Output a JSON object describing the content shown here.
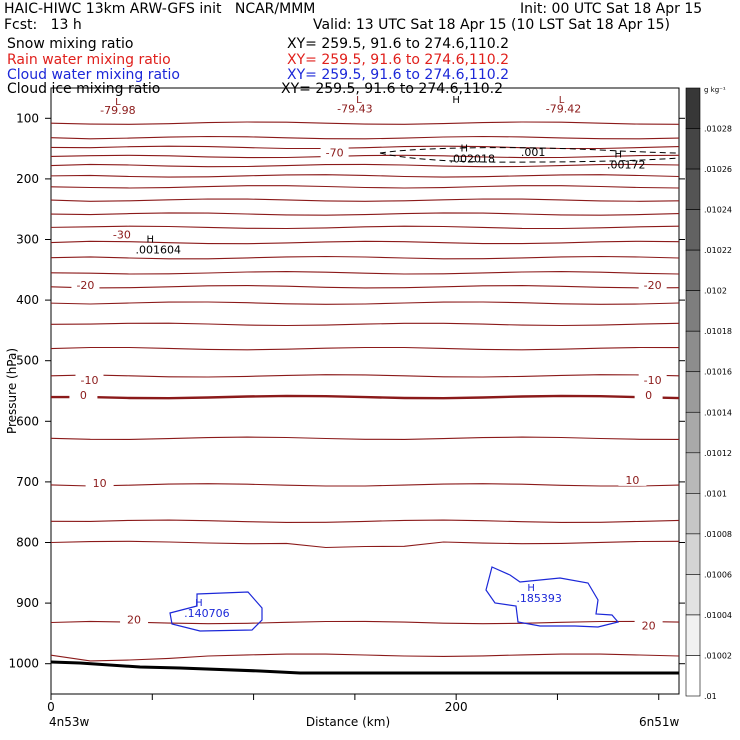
{
  "header": {
    "title_left": "HAIC-HIWC 13km ARW-GFS init   NCAR/MMM",
    "init": "Init: 00 UTC Sat 18 Apr 15",
    "fcst": "Fcst:   13 h",
    "valid": "Valid: 13 UTC Sat 18 Apr 15 (10 LST Sat 18 Apr 15)",
    "fields": [
      {
        "label": "Snow mixing ratio",
        "xy": "XY= 259.5, 91.6 to 274.6,110.2",
        "color": "#000000"
      },
      {
        "label": "Rain water mixing ratio",
        "xy": "XY= 259.5, 91.6 to 274.6,110.2",
        "color": "#e0201c"
      },
      {
        "label": "Cloud water mixing ratio",
        "xy": "XY= 259.5, 91.6 to 274.6,110.2",
        "color": "#1c28d8"
      },
      {
        "label": "Cloud ice mixing ratio",
        "xy": "XY= 259.5, 91.6 to 274.6,110.2",
        "color": "#000000"
      }
    ]
  },
  "colorbar": {
    "unit": "g kg⁻¹",
    "labels": [
      ".01028",
      ".01026",
      ".01024",
      ".01022",
      ".0102",
      ".01018",
      ".01016",
      ".01014",
      ".01012",
      ".0101",
      ".01008",
      ".01006",
      ".01004",
      ".01002",
      ".01"
    ]
  },
  "chart_data": {
    "type": "contour",
    "xlabel": "Distance (km)",
    "ylabel": "Pressure (hPa)",
    "xlim": [
      0,
      310
    ],
    "ylim": [
      1050,
      50
    ],
    "x_ticks": [
      {
        "value": 0,
        "label": "0"
      },
      {
        "value": 200,
        "label": "200"
      }
    ],
    "y_ticks": [
      100,
      200,
      300,
      400,
      500,
      600,
      700,
      800,
      900,
      1000
    ],
    "x_endpoints": {
      "left": "4n53w",
      "right": "6n51w"
    },
    "temperature_labels": [
      {
        "text": "-79.98",
        "x": 33,
        "p": 90
      },
      {
        "text": "-79.43",
        "x": 150,
        "p": 87
      },
      {
        "text": "-79.42",
        "x": 253,
        "p": 87
      },
      {
        "text": "-70",
        "x": 140,
        "p": 160
      },
      {
        "text": "-30",
        "x": 35,
        "p": 295
      },
      {
        "text": "-20",
        "x": 17,
        "p": 378
      },
      {
        "text": "-20",
        "x": 297,
        "p": 378
      },
      {
        "text": "-10",
        "x": 19,
        "p": 535
      },
      {
        "text": "-10",
        "x": 297,
        "p": 535
      },
      {
        "text": "0",
        "x": 16,
        "p": 560
      },
      {
        "text": "0",
        "x": 295,
        "p": 560
      },
      {
        "text": "10",
        "x": 24,
        "p": 705
      },
      {
        "text": "10",
        "x": 287,
        "p": 700
      },
      {
        "text": "20",
        "x": 41,
        "p": 930
      },
      {
        "text": "20",
        "x": 295,
        "p": 940
      }
    ],
    "maxima": [
      {
        "symbol": "H",
        "value": ".002018",
        "x": 204,
        "p": 155,
        "color": "#000000"
      },
      {
        "symbol": "",
        "value": ".001",
        "x": 238,
        "p": 162,
        "color": "#000000"
      },
      {
        "symbol": "H",
        "value": ".00172",
        "x": 280,
        "p": 165,
        "color": "#000000"
      },
      {
        "symbol": "H",
        "value": ".001604",
        "x": 49,
        "p": 305,
        "color": "#000000"
      },
      {
        "symbol": "H",
        "value": ".140706",
        "x": 73,
        "p": 905,
        "color": "#1c28d8"
      },
      {
        "symbol": "H",
        "value": ".185393",
        "x": 237,
        "p": 880,
        "color": "#1c28d8"
      },
      {
        "symbol": "L",
        "value": "",
        "x": 33,
        "p": 78,
        "color": "#8b1a1a"
      },
      {
        "symbol": "L",
        "value": "",
        "x": 152,
        "p": 75,
        "color": "#8b1a1a"
      },
      {
        "symbol": "L",
        "value": "",
        "x": 252,
        "p": 75,
        "color": "#8b1a1a"
      },
      {
        "symbol": "H",
        "value": "",
        "x": 200,
        "p": 75,
        "color": "#000000"
      }
    ],
    "isotherm_p": [
      108,
      132,
      148,
      163,
      178,
      195,
      213,
      235,
      258,
      280,
      305,
      330,
      355,
      378,
      405,
      440,
      480,
      525,
      560,
      628,
      705,
      765,
      800,
      932,
      986
    ]
  },
  "colors": {
    "isotherm": "#8b1a1a",
    "cloud_water": "#1c28d8",
    "terrain": "#000000"
  }
}
